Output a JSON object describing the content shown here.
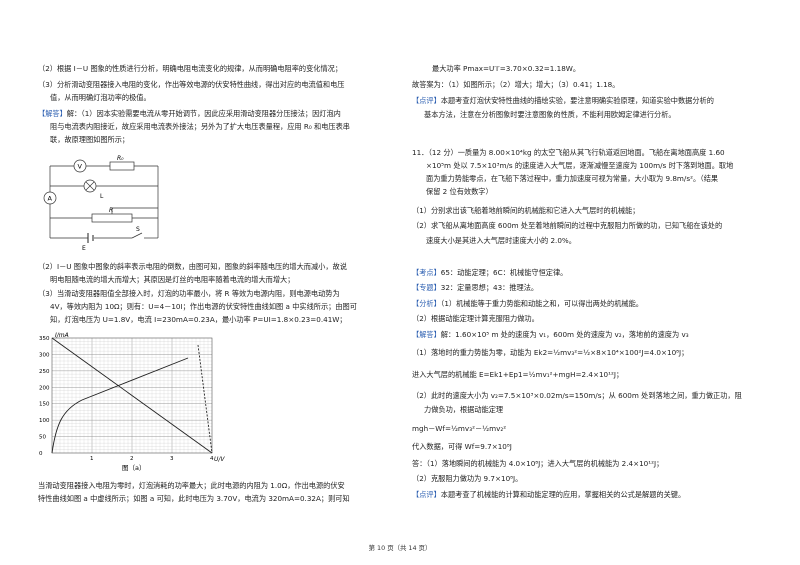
{
  "left": {
    "p2": "（2）根据 I－U 图象的性质进行分析，明确电阻电流变化的规律，从而明确电阻率的变化情况；",
    "p3a": "（3）分析滑动变阻器接入电阻的变化，作出等效电源的伏安特性曲线，得出对应的电流值和电压",
    "p3b": "值，从而明确灯泡功率的极值。",
    "ans_tag": "【解答】",
    "ans1a": "解：（1）因本实验需要电流从零开始调节，因此应采用滑动变阻器分压接法；因灯泡内",
    "ans1b": "阻与电流表内阻接近，故应采用电流表外接法；另外为了扩大电压表量程，应用 R₀ 和电压表串",
    "ans1c": "联，故原理图如图所示；",
    "circuit": {
      "v": "V",
      "a": "A",
      "r0": "R₀",
      "r": "R",
      "l": "L",
      "e": "E",
      "s": "S"
    },
    "ans2a": "（2）I－U 图象中图象的斜率表示电阻的倒数，由图可知，图象的斜率随电压的增大而减小，故说",
    "ans2b": "明电阻随电流的增大而增大；其原因是灯丝的电阻率随着电流的增大而增大；",
    "ans3a": "（3）当滑动变阻器阻值全部接入时，灯泡的功率最小，将 R 等效为电源内阻，则电源电动势为",
    "ans3b": "4V，等效内阻为 10Ω；则有：U=4－10I；作出电源的伏安特性曲线如图 a 中实线所示；由图可",
    "ans3c": "知，灯泡电压为 U=1.8V，电流 I=230mA=0.23A，最小功率 P=UI=1.8×0.23=0.41W；",
    "graph": {
      "ylabel": "I/mA",
      "xlabel": "U/V",
      "caption": "图（a）",
      "yticks": [
        "350",
        "300",
        "250",
        "200",
        "150",
        "100",
        "50",
        "0"
      ],
      "xticks": [
        "1",
        "2",
        "3",
        "4"
      ]
    },
    "end1": "当滑动变阻器接入电阻为零时，灯泡消耗的功率最大；此时电源的内阻为 1.0Ω，作出电源的伏安",
    "end2": "特性曲线如图 a 中虚线所示；如图 a 可知，此时电压为 3.70V，电流为 320mA=0.32A；则可知"
  },
  "right": {
    "r0": "最大功率 Pmax=U′I′=3.70×0.32=1.18W。",
    "r1": "故答案为：（1）如图所示；（2）增大；增大；（3）0.41；1.18。",
    "comment_tag": "【点评】",
    "r2a": "本题考查灯泡伏安特性曲线的描绘实验，要注意明确实验原理，知道实验中数据分析的",
    "r2b": "基本方法，注意在分析图象时要注意图象的性质，不能利用欧姆定律进行分析。",
    "q11a": "11．（12 分）一质量为 8.00×10⁴kg 的太空飞船从其飞行轨道返回地面。飞船在离地面高度 1.60",
    "q11b": "×10⁵m 处以 7.5×10³m/s 的速度进入大气层，逐渐减慢至速度为 100m/s 时下落到地面。取地",
    "q11c": "面为重力势能零点，在飞船下落过程中，重力加速度可视为常量，大小取为 9.8m/s²。（结果",
    "q11d": "保留 2 位有效数字）",
    "q11e": "（1）分别求出该飞船着地前瞬间的机械能和它进入大气层时的机械能；",
    "q11f": "（2）求飞船从离地面高度 600m 处至着地前瞬间的过程中克服阻力所做的功，已知飞船在该处的",
    "q11g": "速度大小是其进入大气层时速度大小的 2.0%。",
    "kd_tag": "【考点】",
    "kd": "65：动能定理；6C：机械能守恒定律。",
    "zt_tag": "【专题】",
    "zt": "32：定量思想；43：推理法。",
    "fx_tag": "【分析】",
    "fx1": "（1）机械能等于重力势能和动能之和，可以得出两处的机械能。",
    "fx2": "（2）根据动能定理计算克服阻力做功。",
    "jd_tag": "【解答】",
    "jd1": "解：1.60×10⁵ m 处的速度为 v₁，600m 处的速度为 v₂，落地前的速度为 v₃",
    "jd2": "（1）落地时的重力势能为零，动能为 Ek2=½mv₃²=½×8×10⁴×100²J=4.0×10⁸J；",
    "jd3": "进入大气层的机械能 E=Ek1+Ep1=½mv₁²+mgH=2.4×10¹²J；",
    "jd4": "（2）此时的速度大小为 v₂=7.5×10³×0.02m/s=150m/s；从 600m 处到落地之间，重力做正功，阻",
    "jd5": "力做负功，根据动能定理",
    "jd6": "mgh－Wf=½mv₃²－½mv₂²",
    "jd7": "代入数据，可得 Wf=9.7×10⁸J",
    "jd8": "答：（1）落地瞬间的机械能为 4.0×10⁸J；进入大气层的机械能为 2.4×10¹²J；",
    "jd9": "（2）克服阻力做功为 9.7×10⁸J。",
    "dp_tag": "【点评】",
    "dp": "本题考查了机械能的计算和动能定理的应用，掌握相关的公式是解题的关键。"
  },
  "footer": "第 10 页（共 14 页）"
}
